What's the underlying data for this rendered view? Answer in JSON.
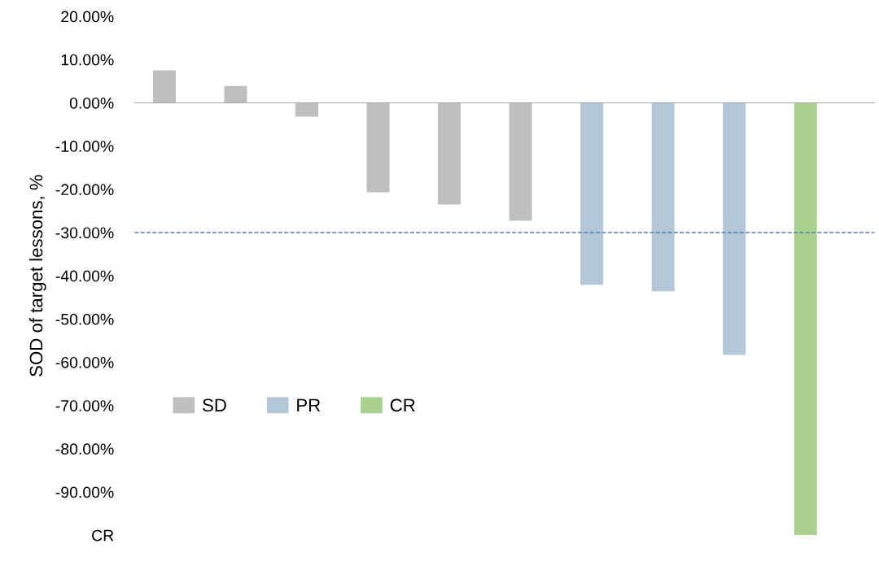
{
  "chart_data": {
    "type": "bar",
    "ylabel": "SOD of target lessons, %",
    "categories": [
      null,
      null,
      null,
      null,
      null,
      null,
      null,
      null,
      null,
      null
    ],
    "series": [
      {
        "name": "SD",
        "color": "#bfbfbf",
        "values": [
          7.5,
          3.9,
          -3.2,
          -20.7,
          -23.5,
          -27.3,
          null,
          null,
          null,
          null
        ]
      },
      {
        "name": "PR",
        "color": "#b4c7d9",
        "values": [
          null,
          null,
          null,
          null,
          null,
          null,
          -42.1,
          -43.6,
          -58.3,
          null
        ]
      },
      {
        "name": "CR",
        "color": "#a9d18e",
        "values": [
          null,
          null,
          null,
          null,
          null,
          null,
          null,
          null,
          null,
          -100
        ]
      }
    ],
    "ylim": [
      -100,
      20
    ],
    "yticks": [
      {
        "value": 20,
        "label": "20.00%"
      },
      {
        "value": 10,
        "label": "10.00%"
      },
      {
        "value": 0,
        "label": "0.00%"
      },
      {
        "value": -10,
        "label": "-10.00%"
      },
      {
        "value": -20,
        "label": "-20.00%"
      },
      {
        "value": -30,
        "label": "-30.00%"
      },
      {
        "value": -40,
        "label": "-40.00%"
      },
      {
        "value": -50,
        "label": "-50.00%"
      },
      {
        "value": -60,
        "label": "-60.00%"
      },
      {
        "value": -70,
        "label": "-70.00%"
      },
      {
        "value": -80,
        "label": "-80.00%"
      },
      {
        "value": -90,
        "label": "-90.00%"
      },
      {
        "value": -100,
        "label": "CR"
      }
    ],
    "ref_lines": [
      {
        "axis": "y",
        "value": -30,
        "label": null,
        "color": "#5b7db1",
        "line_style": "dashed"
      }
    ],
    "legend": "bottom left",
    "grid": false
  }
}
